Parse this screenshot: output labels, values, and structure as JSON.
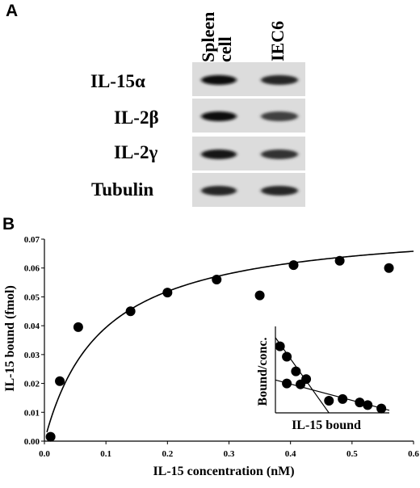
{
  "panel_a": {
    "letter": "A",
    "columns": [
      "Spleen cell",
      "IEC6"
    ],
    "column_lines": [
      [
        "Spleen",
        "cell"
      ],
      [
        "IEC6"
      ]
    ],
    "rows": [
      {
        "label": "IL-15α",
        "band_darkness": [
          0.95,
          0.85
        ]
      },
      {
        "label": "IL-2β",
        "band_darkness": [
          0.95,
          0.75
        ]
      },
      {
        "label": "IL-2γ",
        "band_darkness": [
          0.9,
          0.8
        ]
      },
      {
        "label": "Tubulin",
        "band_darkness": [
          0.85,
          0.85
        ]
      }
    ]
  },
  "panel_b": {
    "letter": "B"
  },
  "chart_data": [
    {
      "type": "scatter",
      "title": "",
      "xlabel": "IL-15 concentration (nM)",
      "ylabel": "IL-15 bound (fmol)",
      "xlim": [
        0,
        0.6
      ],
      "ylim": [
        0,
        0.07
      ],
      "xticks": [
        "0.0",
        "0.1",
        "0.2",
        "0.3",
        "0.4",
        "0.5",
        "0.6"
      ],
      "yticks": [
        "0.00",
        "0.01",
        "0.02",
        "0.03",
        "0.04",
        "0.05",
        "0.06",
        "0.07"
      ],
      "points": [
        {
          "x": 0.01,
          "y": 0.0015
        },
        {
          "x": 0.025,
          "y": 0.0208
        },
        {
          "x": 0.055,
          "y": 0.0395
        },
        {
          "x": 0.14,
          "y": 0.045
        },
        {
          "x": 0.2,
          "y": 0.0515
        },
        {
          "x": 0.28,
          "y": 0.056
        },
        {
          "x": 0.35,
          "y": 0.0505
        },
        {
          "x": 0.405,
          "y": 0.061
        },
        {
          "x": 0.48,
          "y": 0.0625
        },
        {
          "x": 0.56,
          "y": 0.06
        }
      ],
      "fit": {
        "type": "saturation",
        "bmax": 0.076,
        "kd": 0.093
      }
    },
    {
      "type": "scatter",
      "title": "",
      "xlabel": "IL-15 bound",
      "ylabel": "Bound/conc.",
      "xlim": [
        0,
        1
      ],
      "ylim": [
        0,
        1
      ],
      "points": [
        {
          "x": 0.04,
          "y": 0.77
        },
        {
          "x": 0.1,
          "y": 0.65
        },
        {
          "x": 0.18,
          "y": 0.48
        },
        {
          "x": 0.27,
          "y": 0.39
        },
        {
          "x": 0.1,
          "y": 0.34
        },
        {
          "x": 0.22,
          "y": 0.33
        },
        {
          "x": 0.47,
          "y": 0.14
        },
        {
          "x": 0.59,
          "y": 0.16
        },
        {
          "x": 0.74,
          "y": 0.12
        },
        {
          "x": 0.81,
          "y": 0.09
        },
        {
          "x": 0.93,
          "y": 0.05
        }
      ],
      "lines": [
        {
          "x1": 0.0,
          "y1": 0.87,
          "x2": 0.47,
          "y2": 0.0
        },
        {
          "x1": 0.0,
          "y1": 0.38,
          "x2": 1.0,
          "y2": 0.03
        }
      ]
    }
  ]
}
